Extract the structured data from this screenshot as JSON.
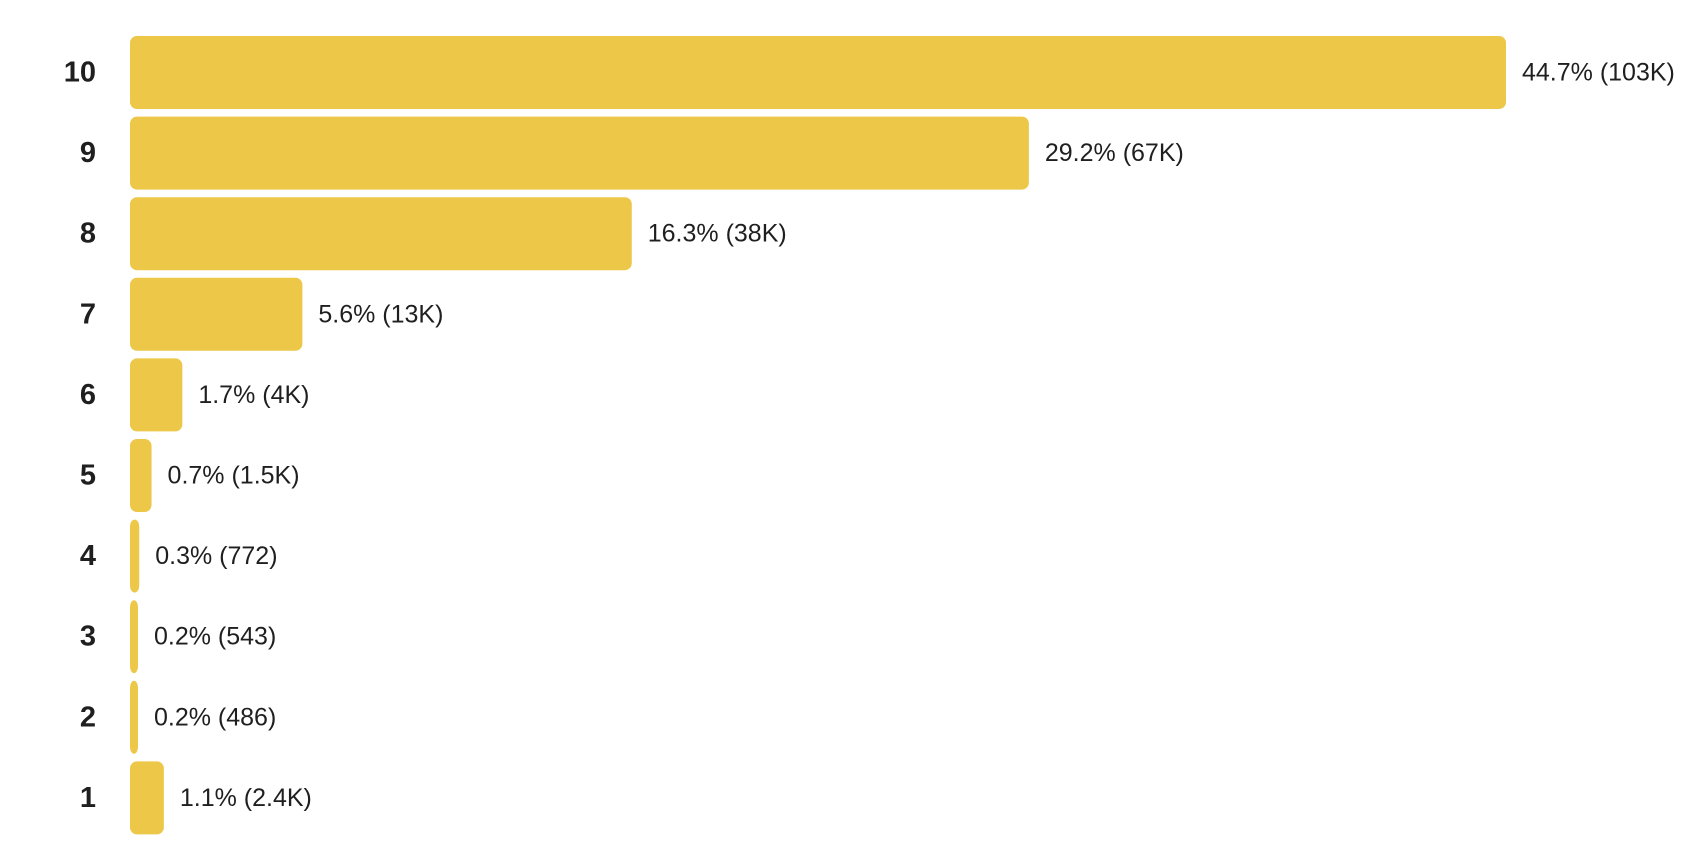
{
  "chart_data": {
    "type": "bar",
    "orientation": "horizontal",
    "categories": [
      "10",
      "9",
      "8",
      "7",
      "6",
      "5",
      "4",
      "3",
      "2",
      "1"
    ],
    "values": [
      44.7,
      29.2,
      16.3,
      5.6,
      1.7,
      0.7,
      0.3,
      0.2,
      0.2,
      1.1
    ],
    "counts": [
      "103K",
      "67K",
      "38K",
      "13K",
      "4K",
      "1.5K",
      "772",
      "543",
      "486",
      "2.4K"
    ],
    "labels": [
      "44.7% (103K)",
      "29.2% (67K)",
      "16.3% (38K)",
      "5.6% (13K)",
      "1.7% (4K)",
      "0.7% (1.5K)",
      "0.3% (772)",
      "0.2% (543)",
      "0.2% (486)",
      "1.1% (2.4K)"
    ],
    "title": "",
    "xlabel": "",
    "ylabel": "",
    "xlim": [
      0,
      44.7
    ],
    "grid": false,
    "legend": "none",
    "bar_color": "#ecc748"
  }
}
